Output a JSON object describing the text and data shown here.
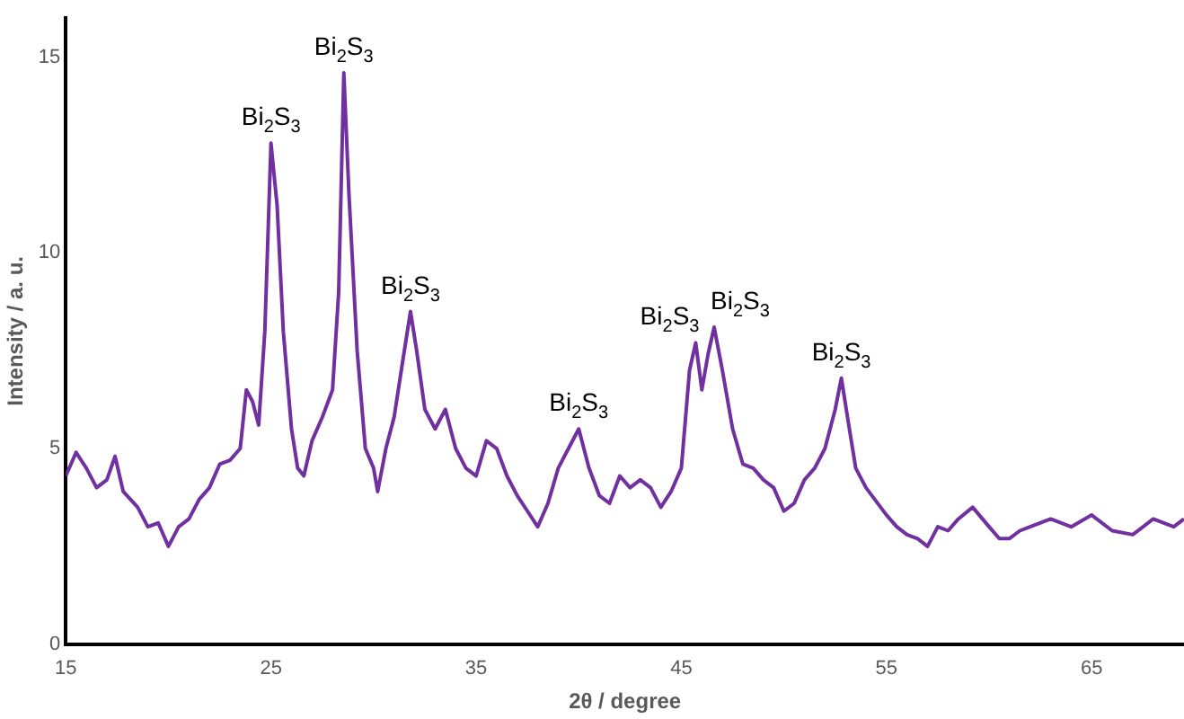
{
  "chart_data": {
    "type": "line",
    "xlabel": "2θ / degree",
    "ylabel": "Intensity / a. u.",
    "xlim": [
      15,
      69.5
    ],
    "xticks": [
      15,
      25,
      35,
      45,
      55,
      65
    ],
    "ylim": [
      0,
      16
    ],
    "yticks": [
      0,
      5,
      10,
      15
    ],
    "grid": false,
    "marker": "none",
    "line_style": "solid",
    "x": [
      15,
      15.5,
      16,
      16.5,
      17,
      17.4,
      17.8,
      18.5,
      19,
      19.5,
      20,
      20.5,
      21,
      21.5,
      22,
      22.5,
      23,
      23.5,
      23.8,
      24.1,
      24.4,
      24.7,
      25,
      25.3,
      25.6,
      26,
      26.3,
      26.6,
      27,
      27.5,
      28,
      28.3,
      28.55,
      28.8,
      29.2,
      29.6,
      30,
      30.2,
      30.6,
      31,
      31.5,
      31.8,
      32.1,
      32.5,
      33,
      33.5,
      34,
      34.5,
      35,
      35.5,
      36,
      36.5,
      37,
      37.5,
      38,
      38.5,
      39,
      39.5,
      40,
      40.5,
      41,
      41.5,
      42,
      42.5,
      43,
      43.5,
      44,
      44.5,
      45,
      45.4,
      45.7,
      46,
      46.3,
      46.6,
      47,
      47.5,
      48,
      48.5,
      49,
      49.5,
      50,
      50.5,
      51,
      51.5,
      52,
      52.5,
      52.8,
      53.1,
      53.5,
      54,
      55,
      55.5,
      56,
      56.5,
      57,
      57.5,
      58,
      58.5,
      59.2,
      60,
      60.5,
      61,
      61.5,
      62,
      63,
      64,
      65,
      66,
      67,
      68,
      69,
      69.5
    ],
    "series": [
      {
        "color": "#7030a0",
        "values": [
          4.3,
          4.9,
          4.5,
          4.0,
          4.2,
          4.8,
          3.9,
          3.5,
          3.0,
          3.1,
          2.5,
          3.0,
          3.2,
          3.7,
          4.0,
          4.6,
          4.7,
          5.0,
          6.5,
          6.2,
          5.6,
          8.0,
          12.8,
          11.2,
          8.0,
          5.5,
          4.5,
          4.3,
          5.2,
          5.8,
          6.5,
          9.0,
          14.6,
          11.5,
          7.5,
          5.0,
          4.5,
          3.9,
          5.0,
          5.8,
          7.5,
          8.5,
          7.5,
          6.0,
          5.5,
          6.0,
          5.0,
          4.5,
          4.3,
          5.2,
          5.0,
          4.3,
          3.8,
          3.4,
          3.0,
          3.6,
          4.5,
          5.0,
          5.5,
          4.5,
          3.8,
          3.6,
          4.3,
          4.0,
          4.2,
          4.0,
          3.5,
          3.9,
          4.5,
          7.0,
          7.7,
          6.5,
          7.4,
          8.1,
          7.0,
          5.5,
          4.6,
          4.5,
          4.2,
          4.0,
          3.4,
          3.6,
          4.2,
          4.5,
          5.0,
          6.0,
          6.8,
          5.8,
          4.5,
          4.0,
          3.3,
          3.0,
          2.8,
          2.7,
          2.5,
          3.0,
          2.9,
          3.2,
          3.5,
          3.0,
          2.7,
          2.7,
          2.9,
          3.0,
          3.2,
          3.0,
          3.3,
          2.9,
          2.8,
          3.2,
          3.0,
          3.2
        ]
      }
    ],
    "annotations": [
      {
        "text": "Bi$_{2}$S$_{3}$",
        "x": 25,
        "y": 12.8
      },
      {
        "text": "Bi$_{2}$S$_{3}$",
        "x": 28.55,
        "y": 14.6
      },
      {
        "text": "Bi$_{2}$S$_{3}$",
        "x": 31.8,
        "y": 8.5
      },
      {
        "text": "Bi$_{2}$S$_{3}$",
        "x": 40,
        "y": 5.5
      },
      {
        "text": "Bi$_{2}$S$_{3}$",
        "x": 45.7,
        "y": 7.7
      },
      {
        "text": "Bi$_{2}$S$_{3}$",
        "x": 46.6,
        "y": 8.1
      },
      {
        "text": "Bi$_{2}$S$_{3}$",
        "x": 52.8,
        "y": 6.8
      }
    ]
  }
}
